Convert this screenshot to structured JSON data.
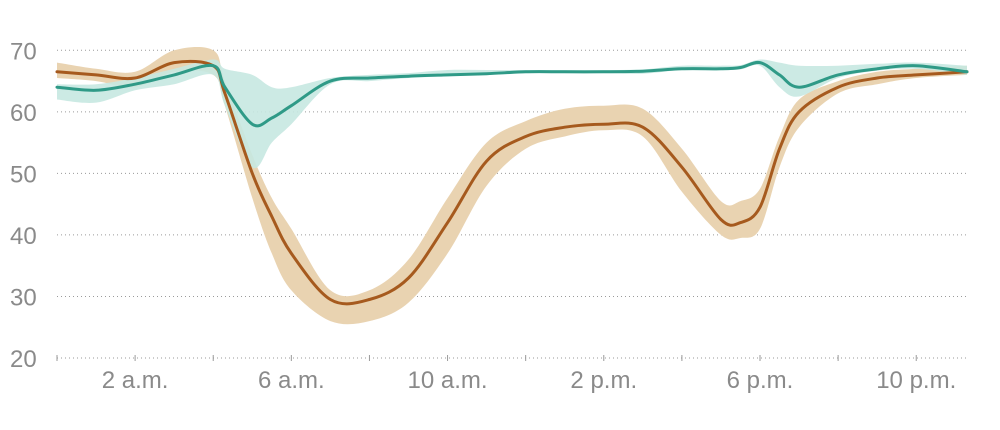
{
  "chart_data": {
    "type": "line",
    "title": "",
    "xlabel": "",
    "ylabel": "",
    "xlim": [
      0,
      23.3
    ],
    "ylim": [
      20,
      72
    ],
    "grid": true,
    "legend": "none",
    "y_ticks": [
      20,
      30,
      40,
      50,
      60,
      70
    ],
    "x_tick_labels": [
      {
        "x": 2,
        "label": "2 a.m."
      },
      {
        "x": 6,
        "label": "6 a.m."
      },
      {
        "x": 10,
        "label": "10 a.m."
      },
      {
        "x": 14,
        "label": "2 p.m."
      },
      {
        "x": 18,
        "label": "6 p.m."
      },
      {
        "x": 22,
        "label": "10 p.m."
      }
    ],
    "x_minor_ticks": [
      0,
      4,
      8,
      12,
      16,
      20
    ],
    "series": [
      {
        "color": "#a65a1e",
        "band_color": "#e9d3b1",
        "x": [
          0,
          1,
          2,
          3,
          4,
          4.3,
          5,
          5.5,
          6,
          7,
          8,
          9,
          10,
          11,
          12,
          13,
          14,
          15,
          16,
          17,
          17.5,
          18,
          18.5,
          19,
          20,
          21,
          22,
          23.3
        ],
        "y": [
          66.5,
          66,
          65.5,
          68,
          67.5,
          63,
          50,
          43,
          37,
          29.5,
          29.5,
          33,
          42,
          52,
          56,
          57.5,
          58,
          57.5,
          51,
          42.5,
          42,
          44.5,
          54,
          60,
          64,
          65.5,
          66,
          66.5
        ],
        "low": [
          65.5,
          65,
          64,
          66.5,
          66,
          61,
          46,
          37,
          31,
          26,
          26,
          29,
          37,
          48,
          54,
          56,
          57,
          56,
          47,
          40,
          39.5,
          41,
          51,
          57.5,
          63,
          64.5,
          65.5,
          66
        ],
        "high": [
          68,
          67,
          66.5,
          70,
          70,
          65,
          53,
          46,
          41,
          31,
          31,
          36,
          46,
          55,
          58.5,
          60.5,
          61,
          60.5,
          54,
          45.5,
          45.5,
          47.5,
          56,
          62,
          65,
          66.5,
          67,
          67.5
        ]
      },
      {
        "color": "#2f9a87",
        "band_color": "#c6e8e1",
        "x": [
          0,
          1,
          2,
          3,
          4,
          4.3,
          5,
          5.5,
          6,
          7,
          8,
          9,
          10,
          11,
          12,
          13,
          14,
          15,
          16,
          17,
          17.5,
          18,
          18.5,
          19,
          20,
          21,
          22,
          23.3
        ],
        "y": [
          64,
          63.5,
          64.5,
          66,
          67.5,
          64,
          58,
          59,
          61,
          65,
          65.5,
          65.8,
          66,
          66.2,
          66.5,
          66.5,
          66.5,
          66.6,
          67,
          67,
          67.2,
          68,
          66,
          64,
          66,
          67,
          67.5,
          66.5
        ],
        "low": [
          62,
          61.5,
          63.5,
          64.5,
          66,
          61,
          51,
          55,
          58,
          64.5,
          65,
          65.5,
          65.8,
          66,
          66.3,
          66.3,
          66.3,
          66.2,
          66.8,
          66.8,
          66.9,
          67.5,
          64,
          62.5,
          65.5,
          66.7,
          67,
          66
        ],
        "high": [
          64.5,
          64.5,
          65.5,
          67,
          68.5,
          67,
          66,
          64,
          64,
          65.5,
          66,
          66.3,
          66.8,
          66.8,
          66.8,
          66.8,
          66.8,
          66.9,
          67.5,
          67.5,
          67.6,
          68.5,
          68,
          67.5,
          67.5,
          67.8,
          68,
          67.5
        ]
      }
    ]
  }
}
